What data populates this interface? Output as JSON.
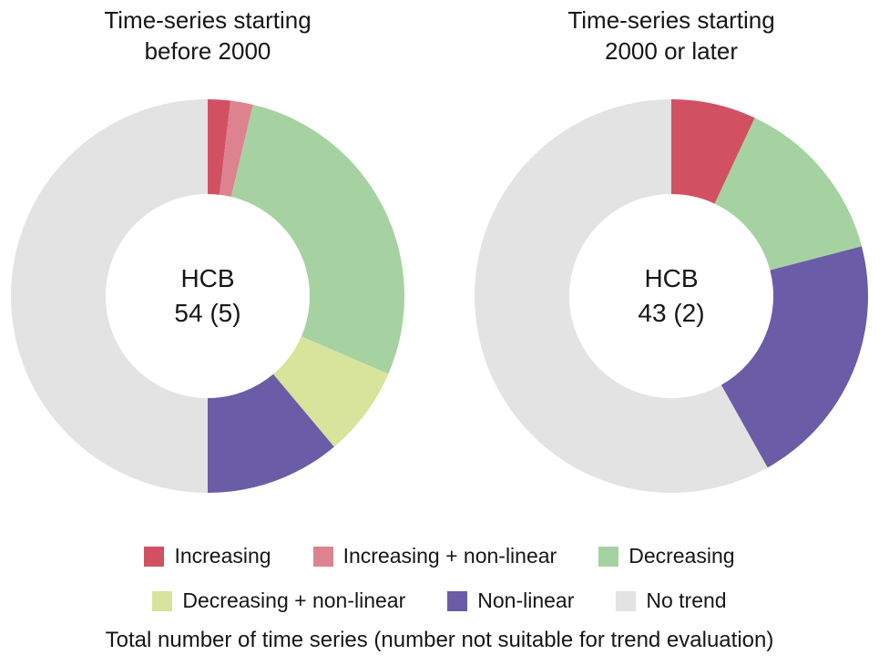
{
  "page": {
    "background": "#ffffff",
    "text_color": "#161616"
  },
  "chart_data": [
    {
      "type": "pie",
      "subtype": "donut",
      "title": "Time-series starting before 2000",
      "title_lines": [
        "Time-series starting",
        "before 2000"
      ],
      "center_label": "HCB",
      "center_value": "54 (5)",
      "total_time_series": 54,
      "not_suitable_for_trend": 5,
      "start_angle_deg": 0,
      "direction": "clockwise",
      "categories": [
        "Increasing",
        "Increasing + non-linear",
        "Decreasing",
        "Decreasing + non-linear",
        "Non-linear",
        "No trend"
      ],
      "values": [
        1,
        1,
        15,
        4,
        6,
        27
      ],
      "colors": [
        "#d15163",
        "#dd8390",
        "#a6d2a1",
        "#d8e39c",
        "#6a5ca6",
        "#e3e3e3"
      ]
    },
    {
      "type": "pie",
      "subtype": "donut",
      "title": "Time-series starting 2000 or later",
      "title_lines": [
        "Time-series starting",
        "2000 or later"
      ],
      "center_label": "HCB",
      "center_value": "43 (2)",
      "total_time_series": 43,
      "not_suitable_for_trend": 2,
      "start_angle_deg": 0,
      "direction": "clockwise",
      "categories": [
        "Increasing",
        "Increasing + non-linear",
        "Decreasing",
        "Decreasing + non-linear",
        "Non-linear",
        "No trend"
      ],
      "values": [
        3,
        0,
        6,
        0,
        9,
        25
      ],
      "colors": [
        "#d15163",
        "#dd8390",
        "#a6d2a1",
        "#d8e39c",
        "#6a5ca6",
        "#e3e3e3"
      ]
    }
  ],
  "legend": {
    "rows": [
      [
        {
          "label": "Increasing",
          "color": "#d15163"
        },
        {
          "label": "Increasing + non-linear",
          "color": "#dd8390"
        },
        {
          "label": "Decreasing",
          "color": "#a6d2a1"
        }
      ],
      [
        {
          "label": "Decreasing + non-linear",
          "color": "#d8e39c"
        },
        {
          "label": "Non-linear",
          "color": "#6a5ca6"
        },
        {
          "label": "No trend",
          "color": "#e3e3e3"
        }
      ]
    ]
  },
  "caption": "Total number of time series (number not suitable for trend evaluation)"
}
